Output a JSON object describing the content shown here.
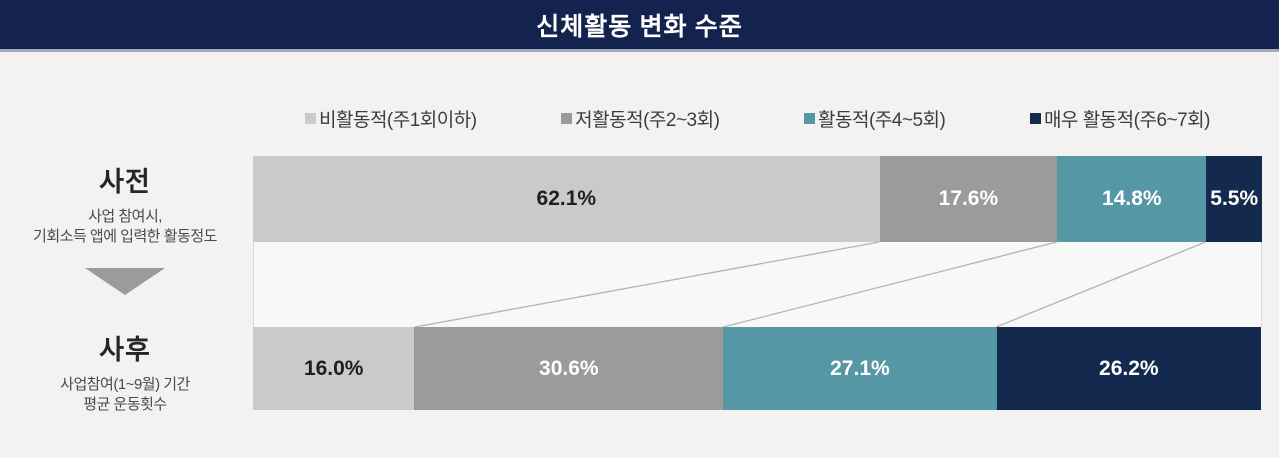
{
  "title": "신체활동 변화 수준",
  "rows": [
    {
      "title": "사전",
      "subtitle_line1": "사업 참여시,",
      "subtitle_line2": "기회소득 앱에 입력한 활동정도"
    },
    {
      "title": "사후",
      "subtitle_line1": "사업참여(1~9월) 기간",
      "subtitle_line2": "평균 운동횟수"
    }
  ],
  "colors": {
    "header_bg": "#14234d",
    "background": "#f3f2f0",
    "connector_line": "#b3b3b1",
    "dark_label_text": "#1f1f1f",
    "light_label_text": "#ffffff"
  },
  "chart_data": {
    "type": "bar",
    "stacked": true,
    "orientation": "horizontal",
    "title": "신체활동 변화 수준",
    "categories": [
      "사전",
      "사후"
    ],
    "series": [
      {
        "name": "비활동적(주1회이하)",
        "color": "#cacaca",
        "values": [
          62.1,
          16.0
        ]
      },
      {
        "name": "저활동적(주2~3회)",
        "color": "#9b9b9b",
        "values": [
          17.6,
          30.6
        ]
      },
      {
        "name": "활동적(주4~5회)",
        "color": "#5697a6",
        "values": [
          14.8,
          27.1
        ]
      },
      {
        "name": "매우 활동적(주6~7회)",
        "color": "#14294e",
        "values": [
          5.5,
          26.2
        ]
      }
    ],
    "unit": "%",
    "xlim": [
      0,
      100
    ],
    "legend_position": "top",
    "data_labels": {
      "사전": [
        "62.1%",
        "17.6%",
        "14.8%",
        "5.5%"
      ],
      "사후": [
        "16.0%",
        "30.6%",
        "27.1%",
        "26.2%"
      ]
    }
  }
}
